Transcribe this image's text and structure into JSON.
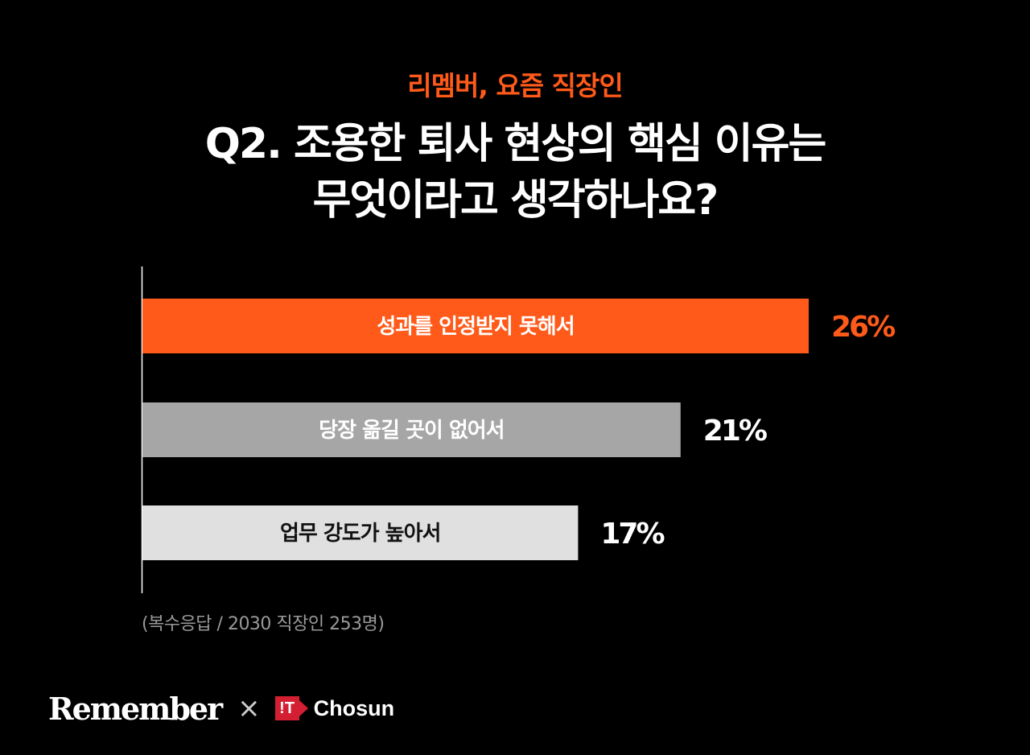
{
  "header": {
    "kicker": "리멤버, 요즘 직장인",
    "title_line1": "Q2. 조용한 퇴사 현상의 핵심 이유는",
    "title_line2": "무엇이라고 생각하나요?"
  },
  "colors": {
    "accent": "#ff5a1a",
    "bar_mid": "#a6a6a6",
    "bar_light": "#e0e0e0",
    "axis": "#ffffff"
  },
  "chart_data": {
    "type": "bar",
    "orientation": "horizontal",
    "categories": [
      "성과를 인정받지 못해서",
      "당장 옮길 곳이 없어서",
      "업무 강도가 높아서"
    ],
    "values": [
      26,
      21,
      17
    ],
    "value_labels": [
      "26%",
      "21%",
      "17%"
    ],
    "unit": "%",
    "bar_colors": [
      "#ff5a1a",
      "#a6a6a6",
      "#e0e0e0"
    ],
    "label_colors": [
      "#ffffff",
      "#ffffff",
      "#111111"
    ],
    "value_label_colors": [
      "#ff5a1a",
      "#ffffff",
      "#ffffff"
    ],
    "xlim": [
      0,
      26
    ]
  },
  "footnote": "(복수응답 / 2030 직장인 253명)",
  "footer": {
    "brand": "Remember",
    "separator": "×",
    "partner_logo_text": "!T",
    "partner_name": "Chosun"
  }
}
